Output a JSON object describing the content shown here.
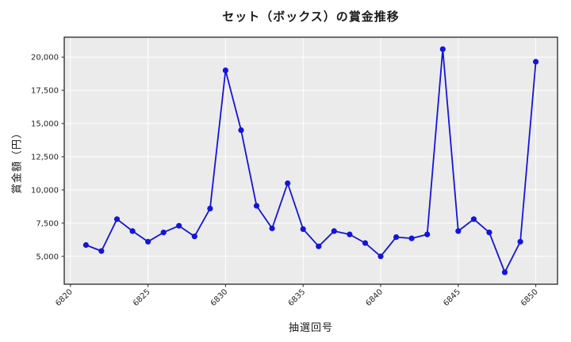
{
  "title": "セット（ボックス）の賞金推移",
  "axes": {
    "x_label": "抽選回号",
    "y_label": "賞金額（円）"
  },
  "chart_data": {
    "type": "line",
    "title": "セット（ボックス）の賞金推移",
    "xlabel": "抽選回号",
    "ylabel": "賞金額（円）",
    "x": [
      6821,
      6822,
      6823,
      6824,
      6825,
      6826,
      6827,
      6828,
      6829,
      6830,
      6831,
      6832,
      6833,
      6834,
      6835,
      6836,
      6837,
      6838,
      6839,
      6840,
      6841,
      6842,
      6843,
      6844,
      6845,
      6846,
      6847,
      6848,
      6849,
      6850
    ],
    "y": [
      5850,
      5400,
      7800,
      6900,
      6100,
      6800,
      7300,
      6500,
      8600,
      19000,
      14500,
      8800,
      7100,
      10500,
      7050,
      5750,
      6900,
      6650,
      6000,
      5000,
      6450,
      6350,
      6650,
      20600,
      6900,
      7800,
      6800,
      3800,
      6100,
      19650
    ],
    "x_ticks": [
      6820,
      6825,
      6830,
      6835,
      6840,
      6845,
      6850
    ],
    "y_ticks": [
      5000,
      7500,
      10000,
      12500,
      15000,
      17500,
      20000
    ],
    "xlim": [
      6819.6,
      6851.4
    ],
    "ylim": [
      2900,
      21500
    ],
    "grid": true,
    "legend": false,
    "line_color": "#1414dc",
    "marker_color": "#1414dc",
    "plot_bg": "#ebebeb",
    "grid_color": "#ffffff",
    "frame_color": "#262626",
    "tick_text_color": "#262626"
  }
}
